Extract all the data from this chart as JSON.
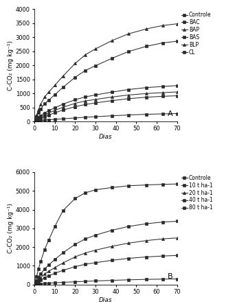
{
  "panel_A": {
    "title": "A",
    "ylabel": "C-CO₂ (mg kg⁻¹)",
    "xlabel": "Dias",
    "ylim": [
      0,
      4000
    ],
    "yticks": [
      0,
      500,
      1000,
      1500,
      2000,
      2500,
      3000,
      3500,
      4000
    ],
    "xlim": [
      0,
      70
    ],
    "xticks": [
      0,
      10,
      20,
      30,
      40,
      50,
      60,
      70
    ],
    "series": {
      "Controle": {
        "x": [
          0,
          1,
          2,
          3,
          5,
          7,
          10,
          14,
          20,
          25,
          30,
          38,
          46,
          55,
          63,
          70
        ],
        "y": [
          0,
          15,
          25,
          35,
          50,
          65,
          80,
          100,
          130,
          155,
          175,
          205,
          235,
          260,
          275,
          285
        ],
        "marker": "s"
      },
      "BAC": {
        "x": [
          0,
          1,
          2,
          3,
          5,
          7,
          10,
          14,
          20,
          25,
          30,
          38,
          46,
          55,
          63,
          70
        ],
        "y": [
          0,
          80,
          150,
          210,
          310,
          390,
          490,
          620,
          780,
          880,
          950,
          1050,
          1140,
          1210,
          1250,
          1280
        ],
        "marker": "s"
      },
      "BAP": {
        "x": [
          0,
          1,
          2,
          3,
          5,
          7,
          10,
          14,
          20,
          25,
          30,
          38,
          46,
          55,
          63,
          70
        ],
        "y": [
          0,
          60,
          110,
          160,
          240,
          310,
          400,
          510,
          650,
          735,
          790,
          875,
          945,
          1000,
          1030,
          1055
        ],
        "marker": "^"
      },
      "BAS": {
        "x": [
          0,
          1,
          2,
          3,
          5,
          7,
          10,
          14,
          20,
          25,
          30,
          38,
          46,
          55,
          63,
          70
        ],
        "y": [
          0,
          170,
          320,
          440,
          640,
          760,
          960,
          1220,
          1580,
          1820,
          1990,
          2250,
          2490,
          2680,
          2800,
          2860
        ],
        "marker": "s"
      },
      "BLP": {
        "x": [
          0,
          1,
          2,
          3,
          5,
          7,
          10,
          14,
          20,
          25,
          30,
          38,
          46,
          55,
          63,
          70
        ],
        "y": [
          0,
          220,
          430,
          610,
          880,
          1050,
          1290,
          1620,
          2070,
          2380,
          2590,
          2880,
          3120,
          3300,
          3420,
          3480
        ],
        "marker": "^"
      },
      "CL": {
        "x": [
          0,
          1,
          2,
          3,
          5,
          7,
          10,
          14,
          20,
          25,
          30,
          38,
          46,
          55,
          63,
          70
        ],
        "y": [
          0,
          40,
          75,
          110,
          175,
          235,
          315,
          410,
          530,
          610,
          665,
          745,
          815,
          868,
          900,
          920
        ],
        "marker": "s"
      }
    },
    "legend_order": [
      "Controle",
      "BAC",
      "BAP",
      "BAS",
      "BLP",
      "CL"
    ]
  },
  "panel_B": {
    "title": "B",
    "ylabel": "C-CO₂ (mg kg⁻¹)",
    "xlabel": "Dias",
    "ylim": [
      0,
      6000
    ],
    "yticks": [
      0,
      1000,
      2000,
      3000,
      4000,
      5000,
      6000
    ],
    "xlim": [
      0,
      70
    ],
    "xticks": [
      0,
      10,
      20,
      30,
      40,
      50,
      60,
      70
    ],
    "series": {
      "Controle": {
        "x": [
          0,
          1,
          2,
          3,
          5,
          7,
          10,
          14,
          20,
          25,
          30,
          38,
          46,
          55,
          63,
          70
        ],
        "y": [
          0,
          15,
          28,
          38,
          58,
          75,
          95,
          120,
          150,
          175,
          195,
          225,
          255,
          278,
          292,
          300
        ],
        "marker": "s"
      },
      "10 t ha-1": {
        "x": [
          0,
          1,
          2,
          3,
          5,
          7,
          10,
          14,
          20,
          25,
          30,
          38,
          46,
          55,
          63,
          70
        ],
        "y": [
          0,
          90,
          175,
          248,
          375,
          470,
          600,
          760,
          960,
          1085,
          1170,
          1295,
          1400,
          1475,
          1525,
          1555
        ],
        "marker": "s"
      },
      "20 t ha-1": {
        "x": [
          0,
          1,
          2,
          3,
          5,
          7,
          10,
          14,
          20,
          25,
          30,
          38,
          46,
          55,
          63,
          70
        ],
        "y": [
          0,
          135,
          260,
          370,
          565,
          710,
          910,
          1155,
          1480,
          1690,
          1840,
          2040,
          2210,
          2350,
          2440,
          2490
        ],
        "marker": "^"
      },
      "40 t ha-1": {
        "x": [
          0,
          1,
          2,
          3,
          5,
          7,
          10,
          14,
          20,
          25,
          30,
          38,
          46,
          55,
          63,
          70
        ],
        "y": [
          0,
          200,
          395,
          560,
          840,
          1050,
          1340,
          1700,
          2150,
          2440,
          2640,
          2900,
          3100,
          3250,
          3340,
          3380
        ],
        "marker": "s"
      },
      "80 t ha-1": {
        "x": [
          0,
          1,
          2,
          3,
          5,
          7,
          10,
          14,
          20,
          25,
          30,
          38,
          46,
          55,
          63,
          70
        ],
        "y": [
          0,
          420,
          840,
          1220,
          1870,
          2380,
          3100,
          3950,
          4600,
          4900,
          5060,
          5180,
          5270,
          5320,
          5350,
          5370
        ],
        "marker": "s"
      }
    },
    "legend_order": [
      "Controle",
      "10 t ha-1",
      "20 t ha-1",
      "40 t ha-1",
      "80 t ha-1"
    ]
  },
  "line_color": "#2a2a2a",
  "marker_size": 3,
  "linewidth": 0.75,
  "tick_fontsize": 6,
  "label_fontsize": 6.5,
  "legend_fontsize": 5.5,
  "panel_label_fontsize": 8
}
